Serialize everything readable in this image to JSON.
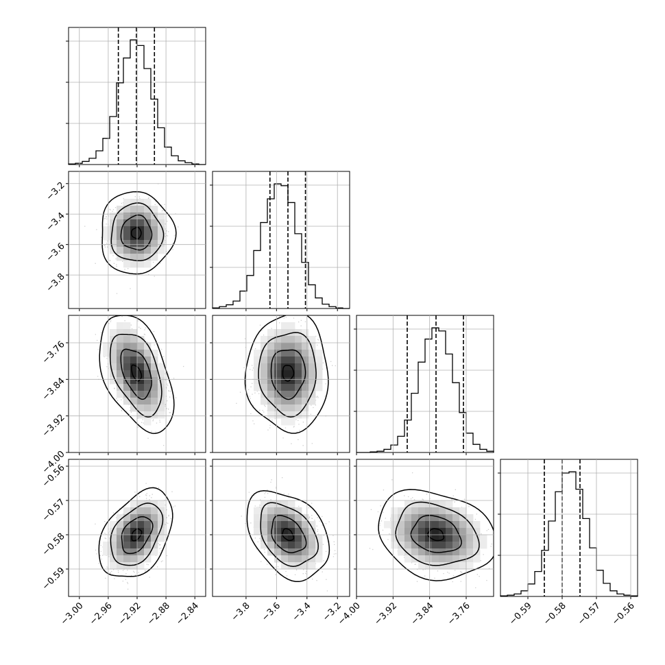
{
  "chart_data": {
    "type": "corner",
    "grid": true,
    "parameters": [
      {
        "range": [
          -3.015,
          -2.825
        ],
        "ticks": [
          -3.0,
          -2.96,
          -2.92,
          -2.88,
          -2.84
        ],
        "tick_labels": [
          "−3.00",
          "−2.96",
          "−2.92",
          "−2.88",
          "−2.84"
        ],
        "quantiles": [
          -2.946,
          -2.921,
          -2.896
        ],
        "histogram": [
          1,
          2,
          5,
          10,
          22,
          42,
          77,
          131,
          171,
          200,
          191,
          154,
          105,
          59,
          28,
          14,
          6,
          3,
          1,
          0
        ]
      },
      {
        "range": [
          -4.02,
          -3.12
        ],
        "ticks": [
          -3.8,
          -3.6,
          -3.4,
          -3.2
        ],
        "tick_labels": [
          "−3.8",
          "−3.6",
          "−3.4",
          "−3.2"
        ],
        "quantiles": [
          -3.643,
          -3.525,
          -3.41
        ],
        "histogram": [
          1,
          3,
          6,
          12,
          28,
          53,
          93,
          138,
          176,
          200,
          197,
          170,
          120,
          74,
          38,
          17,
          7,
          3,
          1,
          0
        ]
      },
      {
        "range": [
          -4.0,
          -3.7
        ],
        "ticks": [
          -4.0,
          -3.92,
          -3.84,
          -3.76
        ],
        "tick_labels": [
          "−4.00",
          "−3.92",
          "−3.84",
          "−3.76"
        ],
        "quantiles": [
          -3.889,
          -3.826,
          -3.766
        ],
        "histogram": [
          0,
          0,
          1,
          2,
          5,
          12,
          26,
          52,
          95,
          145,
          182,
          200,
          195,
          158,
          112,
          64,
          31,
          13,
          5,
          2
        ]
      },
      {
        "range": [
          -0.598,
          -0.558
        ],
        "ticks": [
          -0.59,
          -0.58,
          -0.57,
          -0.56
        ],
        "tick_labels": [
          "−0.59",
          "−0.58",
          "−0.57",
          "−0.56"
        ],
        "quantiles": [
          -0.5852,
          -0.58,
          -0.5748
        ],
        "histogram": [
          1,
          2,
          4,
          9,
          20,
          40,
          74,
          121,
          168,
          198,
          200,
          172,
          125,
          78,
          42,
          21,
          9,
          4,
          2,
          1
        ]
      }
    ],
    "pairs": [
      {
        "row": 1,
        "col": 0,
        "center": [
          -2.921,
          -3.525
        ],
        "sigma": [
          0.017,
          0.09
        ],
        "rho": 0.0
      },
      {
        "row": 2,
        "col": 0,
        "center": [
          -2.921,
          -3.826
        ],
        "sigma": [
          0.017,
          0.043
        ],
        "rho": -0.45
      },
      {
        "row": 2,
        "col": 1,
        "center": [
          -3.525,
          -3.826
        ],
        "sigma": [
          0.09,
          0.043
        ],
        "rho": 0.0
      },
      {
        "row": 3,
        "col": 0,
        "center": [
          -2.921,
          -0.58
        ],
        "sigma": [
          0.017,
          0.0043
        ],
        "rho": 0.4
      },
      {
        "row": 3,
        "col": 1,
        "center": [
          -3.525,
          -0.58
        ],
        "sigma": [
          0.09,
          0.0043
        ],
        "rho": -0.35
      },
      {
        "row": 3,
        "col": 2,
        "center": [
          -3.826,
          -0.58
        ],
        "sigma": [
          0.043,
          0.0043
        ],
        "rho": -0.2
      }
    ]
  }
}
